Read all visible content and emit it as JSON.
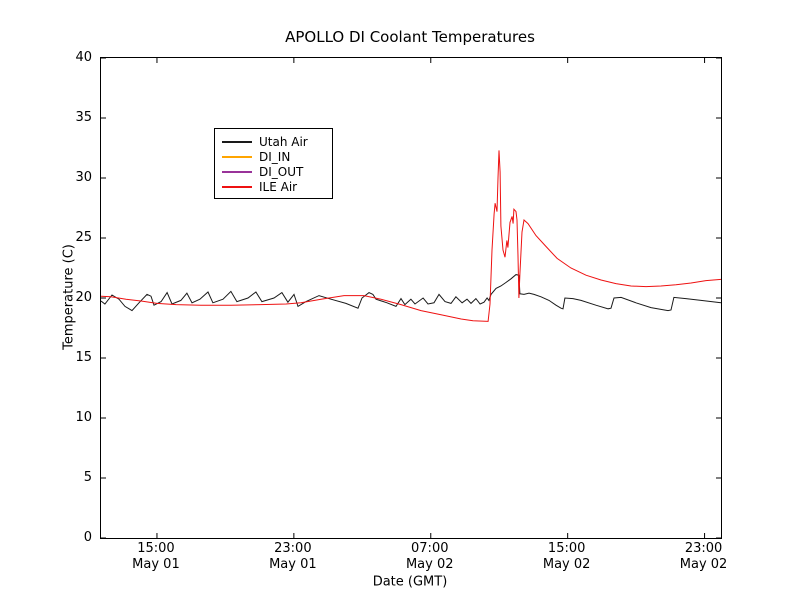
{
  "title": "APOLLO DI Coolant Temperatures",
  "axes": {
    "xlabel": "Date (GMT)",
    "ylabel": "Temperature (C)",
    "y_ticks": [
      0,
      5,
      10,
      15,
      20,
      25,
      30,
      35,
      40
    ],
    "x_ticks": [
      {
        "hour": 15,
        "time": "15:00",
        "date": "May 01"
      },
      {
        "hour": 23,
        "time": "23:00",
        "date": "May 01"
      },
      {
        "hour": 31,
        "time": "07:00",
        "date": "May 02"
      },
      {
        "hour": 39,
        "time": "15:00",
        "date": "May 02"
      },
      {
        "hour": 47,
        "time": "23:00",
        "date": "May 02"
      }
    ]
  },
  "legend": {
    "position": "upper left",
    "items": [
      {
        "label": "Utah Air",
        "color": "#1a1a1a"
      },
      {
        "label": "DI_IN",
        "color": "#ffa500"
      },
      {
        "label": "DI_OUT",
        "color": "#993399"
      },
      {
        "label": "ILE Air",
        "color": "#ee1111"
      }
    ]
  },
  "chart_data": {
    "type": "line",
    "title": "APOLLO DI Coolant Temperatures",
    "xlabel": "Date (GMT)",
    "ylabel": "Temperature (C)",
    "x_unit": "hours since May 01 00:00 GMT",
    "xlim_hours": [
      11.73,
      47.96
    ],
    "ylim": [
      0,
      40
    ],
    "grid": false,
    "legend_position": "upper left",
    "series": [
      {
        "name": "Utah Air",
        "color": "#1a1a1a",
        "points": [
          [
            11.73,
            19.75
          ],
          [
            11.96,
            19.5
          ],
          [
            12.37,
            20.25
          ],
          [
            12.78,
            19.9
          ],
          [
            13.13,
            19.3
          ],
          [
            13.54,
            18.95
          ],
          [
            13.95,
            19.6
          ],
          [
            14.42,
            20.3
          ],
          [
            14.65,
            20.15
          ],
          [
            14.83,
            19.4
          ],
          [
            15.24,
            19.7
          ],
          [
            15.59,
            20.45
          ],
          [
            15.88,
            19.5
          ],
          [
            16.4,
            19.8
          ],
          [
            16.75,
            20.4
          ],
          [
            17.05,
            19.6
          ],
          [
            17.51,
            19.9
          ],
          [
            17.98,
            20.5
          ],
          [
            18.27,
            19.6
          ],
          [
            18.86,
            19.9
          ],
          [
            19.32,
            20.55
          ],
          [
            19.67,
            19.7
          ],
          [
            20.32,
            20.0
          ],
          [
            20.78,
            20.5
          ],
          [
            21.13,
            19.7
          ],
          [
            21.84,
            20.0
          ],
          [
            22.3,
            20.45
          ],
          [
            22.65,
            19.65
          ],
          [
            23.01,
            20.3
          ],
          [
            23.24,
            19.3
          ],
          [
            23.71,
            19.7
          ],
          [
            24.47,
            20.2
          ],
          [
            25.17,
            19.9
          ],
          [
            26.04,
            19.55
          ],
          [
            26.75,
            19.15
          ],
          [
            26.98,
            20.0
          ],
          [
            27.39,
            20.45
          ],
          [
            27.62,
            20.3
          ],
          [
            27.8,
            19.9
          ],
          [
            28.44,
            19.6
          ],
          [
            28.97,
            19.3
          ],
          [
            29.26,
            19.95
          ],
          [
            29.49,
            19.45
          ],
          [
            29.84,
            19.9
          ],
          [
            30.08,
            19.5
          ],
          [
            30.55,
            20.0
          ],
          [
            30.84,
            19.5
          ],
          [
            31.19,
            19.6
          ],
          [
            31.48,
            20.3
          ],
          [
            31.83,
            19.7
          ],
          [
            32.18,
            19.55
          ],
          [
            32.47,
            20.1
          ],
          [
            32.83,
            19.6
          ],
          [
            33.12,
            19.9
          ],
          [
            33.35,
            19.55
          ],
          [
            33.64,
            19.95
          ],
          [
            33.88,
            19.5
          ],
          [
            34.11,
            19.65
          ],
          [
            34.29,
            20.0
          ],
          [
            34.4,
            19.8
          ],
          [
            34.52,
            20.3
          ],
          [
            34.81,
            20.8
          ],
          [
            35.1,
            21.0
          ],
          [
            35.4,
            21.3
          ],
          [
            35.69,
            21.6
          ],
          [
            35.98,
            21.95
          ],
          [
            36.15,
            21.9
          ],
          [
            36.21,
            20.35
          ],
          [
            36.45,
            20.3
          ],
          [
            36.74,
            20.4
          ],
          [
            37.03,
            20.3
          ],
          [
            37.44,
            20.1
          ],
          [
            37.91,
            19.8
          ],
          [
            38.32,
            19.4
          ],
          [
            38.61,
            19.15
          ],
          [
            38.73,
            19.1
          ],
          [
            38.84,
            20.0
          ],
          [
            39.31,
            19.95
          ],
          [
            39.78,
            19.8
          ],
          [
            40.65,
            19.4
          ],
          [
            41.36,
            19.1
          ],
          [
            41.53,
            19.15
          ],
          [
            41.71,
            20.0
          ],
          [
            42.12,
            20.05
          ],
          [
            42.99,
            19.6
          ],
          [
            43.87,
            19.2
          ],
          [
            44.86,
            18.95
          ],
          [
            45.04,
            19.0
          ],
          [
            45.21,
            20.05
          ],
          [
            45.91,
            19.95
          ],
          [
            46.79,
            19.8
          ],
          [
            47.96,
            19.6
          ]
        ]
      },
      {
        "name": "DI_IN",
        "color": "#ffa500",
        "points": []
      },
      {
        "name": "DI_OUT",
        "color": "#993399",
        "points": []
      },
      {
        "name": "ILE Air",
        "color": "#ee1111",
        "points": [
          [
            11.73,
            20.15
          ],
          [
            12.31,
            20.1
          ],
          [
            13.19,
            19.9
          ],
          [
            14.07,
            19.75
          ],
          [
            15.0,
            19.55
          ],
          [
            16.11,
            19.45
          ],
          [
            17.57,
            19.4
          ],
          [
            19.32,
            19.4
          ],
          [
            21.08,
            19.45
          ],
          [
            22.54,
            19.5
          ],
          [
            23.42,
            19.6
          ],
          [
            24.59,
            19.9
          ],
          [
            25.93,
            20.2
          ],
          [
            27.1,
            20.2
          ],
          [
            28.09,
            19.9
          ],
          [
            29.26,
            19.45
          ],
          [
            30.43,
            18.95
          ],
          [
            31.6,
            18.6
          ],
          [
            32.77,
            18.25
          ],
          [
            33.47,
            18.1
          ],
          [
            34.35,
            18.05
          ],
          [
            34.46,
            19.5
          ],
          [
            34.58,
            24.0
          ],
          [
            34.7,
            27.0
          ],
          [
            34.76,
            27.9
          ],
          [
            34.87,
            27.2
          ],
          [
            34.93,
            30.0
          ],
          [
            34.99,
            32.3
          ],
          [
            35.05,
            30.5
          ],
          [
            35.1,
            26.0
          ],
          [
            35.22,
            24.0
          ],
          [
            35.34,
            23.4
          ],
          [
            35.45,
            24.8
          ],
          [
            35.51,
            24.2
          ],
          [
            35.63,
            26.3
          ],
          [
            35.75,
            26.8
          ],
          [
            35.81,
            26.2
          ],
          [
            35.86,
            27.4
          ],
          [
            35.98,
            27.2
          ],
          [
            36.04,
            26.5
          ],
          [
            36.1,
            23.5
          ],
          [
            36.15,
            20.0
          ],
          [
            36.21,
            22.0
          ],
          [
            36.33,
            25.5
          ],
          [
            36.45,
            26.5
          ],
          [
            36.68,
            26.2
          ],
          [
            37.15,
            25.2
          ],
          [
            37.73,
            24.3
          ],
          [
            38.38,
            23.3
          ],
          [
            39.19,
            22.5
          ],
          [
            40.07,
            21.9
          ],
          [
            40.95,
            21.5
          ],
          [
            41.82,
            21.2
          ],
          [
            42.7,
            21.0
          ],
          [
            43.58,
            20.95
          ],
          [
            44.45,
            21.0
          ],
          [
            45.33,
            21.1
          ],
          [
            46.21,
            21.25
          ],
          [
            47.08,
            21.45
          ],
          [
            47.96,
            21.55
          ]
        ]
      }
    ]
  }
}
